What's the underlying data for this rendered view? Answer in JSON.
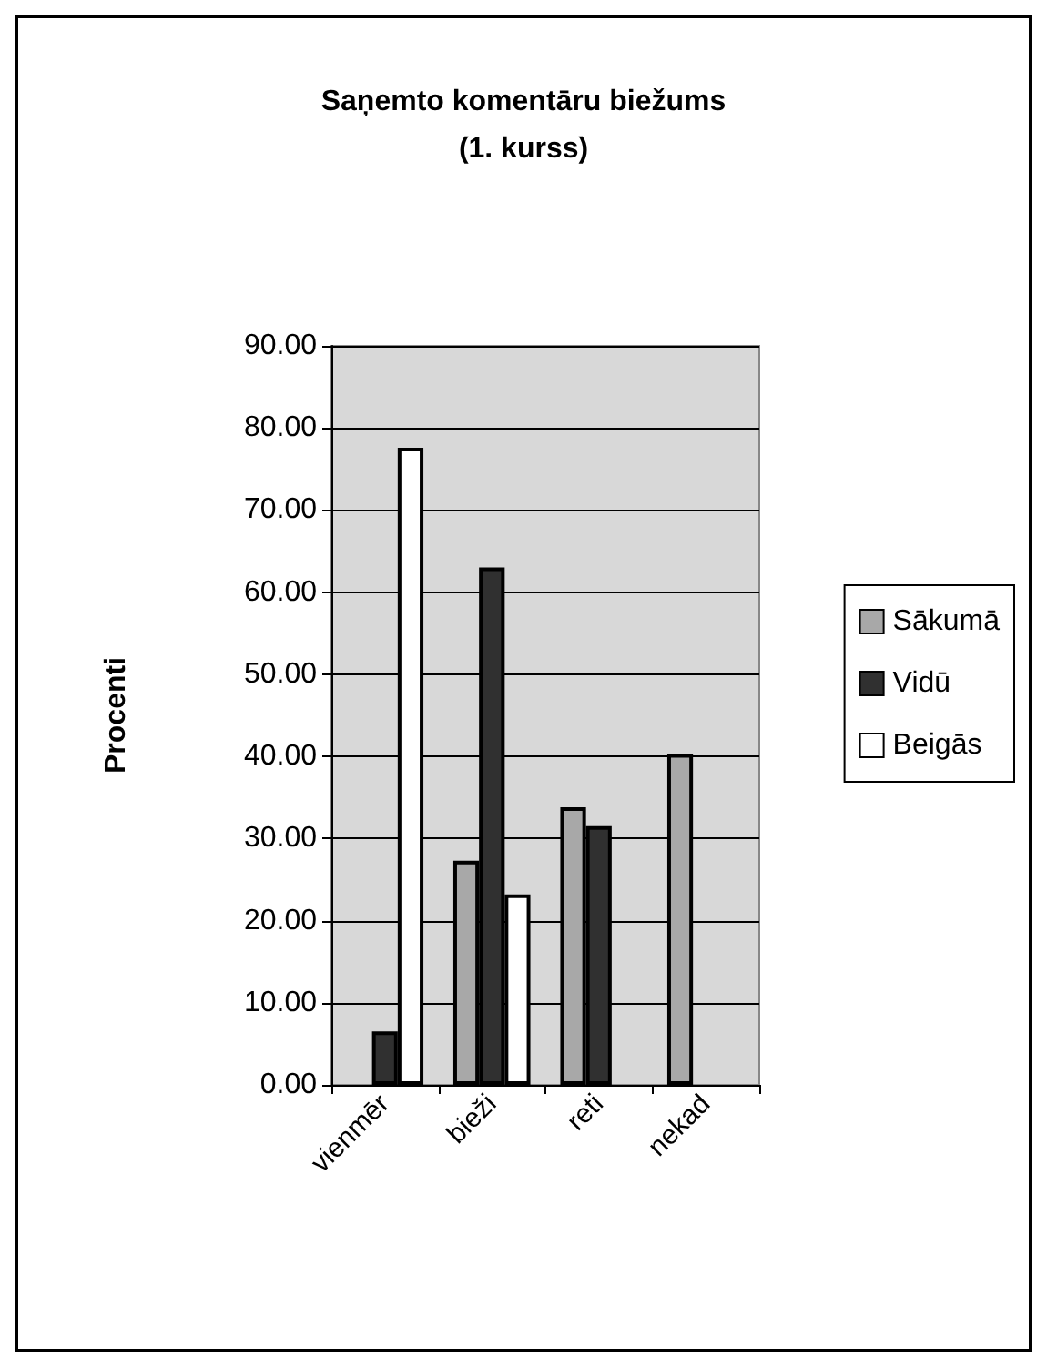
{
  "chart_data": {
    "type": "bar",
    "title": "Saņemto komentāru biežums\n(1. kurss)",
    "ylabel": "Procenti",
    "categories": [
      "vienmēr",
      "bieži",
      "reti",
      "nekad"
    ],
    "series": [
      {
        "name": "Sākumā",
        "color": "#a8a8a8",
        "values": [
          0,
          27.3,
          33.8,
          40.3
        ]
      },
      {
        "name": "Vidū",
        "color": "#303030",
        "values": [
          6.5,
          63,
          31.5,
          0
        ]
      },
      {
        "name": "Beigās",
        "color": "#ffffff",
        "values": [
          77.6,
          23.2,
          0,
          0
        ]
      }
    ],
    "ylim": [
      0,
      90
    ],
    "yticks": [
      {
        "value": 0,
        "label": "0.00"
      },
      {
        "value": 10,
        "label": "10.00"
      },
      {
        "value": 20,
        "label": "20.00"
      },
      {
        "value": 30,
        "label": "30.00"
      },
      {
        "value": 40,
        "label": "40.00"
      },
      {
        "value": 50,
        "label": "50.00"
      },
      {
        "value": 60,
        "label": "60.00"
      },
      {
        "value": 70,
        "label": "70.00"
      },
      {
        "value": 80,
        "label": "80.00"
      },
      {
        "value": 90,
        "label": "90.00"
      }
    ],
    "grid": true,
    "legend": "right"
  }
}
